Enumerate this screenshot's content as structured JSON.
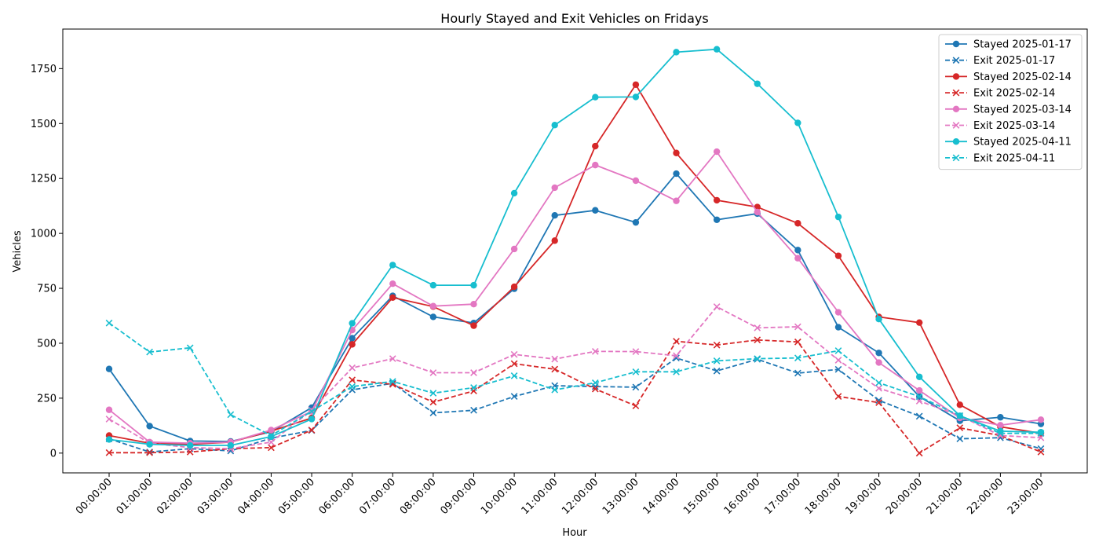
{
  "chart_data": {
    "type": "line",
    "title": "Hourly Stayed and Exit Vehicles on Fridays",
    "xlabel": "Hour",
    "ylabel": "Vehicles",
    "ylim": [
      -90,
      1930
    ],
    "yticks": [
      0,
      250,
      500,
      750,
      1000,
      1250,
      1500,
      1750
    ],
    "legend_position": "top-right",
    "grid": false,
    "categories": [
      "00:00:00",
      "01:00:00",
      "02:00:00",
      "03:00:00",
      "04:00:00",
      "05:00:00",
      "06:00:00",
      "07:00:00",
      "08:00:00",
      "09:00:00",
      "10:00:00",
      "11:00:00",
      "12:00:00",
      "13:00:00",
      "14:00:00",
      "15:00:00",
      "16:00:00",
      "17:00:00",
      "18:00:00",
      "19:00:00",
      "20:00:00",
      "21:00:00",
      "22:00:00",
      "23:00:00"
    ],
    "series": [
      {
        "name": "Stayed 2025-01-17",
        "color": "#1f77b4",
        "style": "solid",
        "marker": "circle",
        "values": [
          383,
          123,
          55,
          53,
          97,
          207,
          523,
          716,
          620,
          592,
          748,
          1082,
          1105,
          1050,
          1272,
          1062,
          1090,
          924,
          573,
          456,
          257,
          147,
          163,
          133
        ]
      },
      {
        "name": "Exit 2025-01-17",
        "color": "#1f77b4",
        "style": "dashed",
        "marker": "x",
        "values": [
          65,
          5,
          20,
          10,
          68,
          103,
          288,
          318,
          183,
          195,
          258,
          307,
          303,
          300,
          433,
          374,
          427,
          364,
          381,
          240,
          168,
          65,
          70,
          20
        ]
      },
      {
        "name": "Stayed 2025-02-14",
        "color": "#d62728",
        "style": "solid",
        "marker": "circle",
        "values": [
          80,
          45,
          40,
          50,
          100,
          160,
          495,
          708,
          667,
          580,
          757,
          967,
          1397,
          1677,
          1366,
          1151,
          1120,
          1046,
          898,
          620,
          594,
          220,
          120,
          90
        ]
      },
      {
        "name": "Exit 2025-02-14",
        "color": "#d62728",
        "style": "dashed",
        "marker": "x",
        "values": [
          2,
          2,
          5,
          20,
          25,
          105,
          333,
          313,
          232,
          283,
          407,
          382,
          292,
          215,
          509,
          492,
          515,
          506,
          258,
          230,
          0,
          115,
          80,
          5
        ]
      },
      {
        "name": "Stayed 2025-03-14",
        "color": "#e377c2",
        "style": "solid",
        "marker": "circle",
        "values": [
          197,
          50,
          45,
          50,
          105,
          190,
          560,
          771,
          669,
          678,
          929,
          1208,
          1311,
          1240,
          1148,
          1372,
          1097,
          887,
          641,
          412,
          285,
          160,
          127,
          152
        ]
      },
      {
        "name": "Exit 2025-03-14",
        "color": "#e377c2",
        "style": "dashed",
        "marker": "x",
        "values": [
          155,
          45,
          25,
          20,
          50,
          195,
          388,
          430,
          366,
          366,
          449,
          428,
          463,
          462,
          443,
          666,
          570,
          575,
          423,
          295,
          237,
          170,
          80,
          70
        ]
      },
      {
        "name": "Stayed 2025-04-11",
        "color": "#17becf",
        "style": "solid",
        "marker": "circle",
        "values": [
          62,
          40,
          35,
          35,
          75,
          155,
          591,
          856,
          764,
          764,
          1183,
          1493,
          1620,
          1621,
          1825,
          1838,
          1681,
          1503,
          1075,
          610,
          347,
          170,
          100,
          95
        ]
      },
      {
        "name": "Exit 2025-04-11",
        "color": "#17becf",
        "style": "dashed",
        "marker": "x",
        "values": [
          592,
          460,
          479,
          175,
          80,
          190,
          303,
          326,
          273,
          298,
          352,
          288,
          320,
          370,
          370,
          420,
          430,
          433,
          466,
          320,
          257,
          170,
          90,
          90
        ]
      }
    ]
  }
}
